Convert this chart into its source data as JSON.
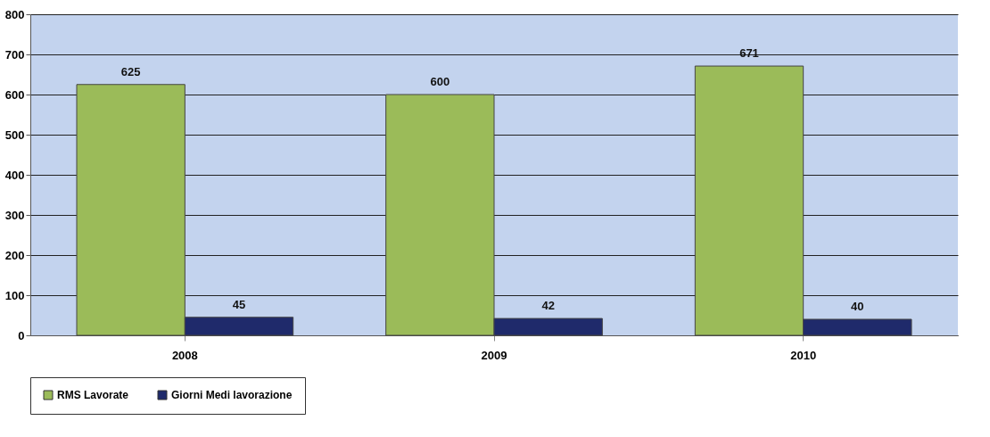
{
  "chart_data": {
    "type": "bar",
    "categories": [
      "2008",
      "2009",
      "2010"
    ],
    "series": [
      {
        "name": "RMS Lavorate",
        "color": "#9bbb59",
        "values": [
          625,
          600,
          671
        ]
      },
      {
        "name": "Giorni Medi lavorazione",
        "color": "#1f2a6b",
        "values": [
          45,
          42,
          40
        ]
      }
    ],
    "ylim": [
      0,
      800
    ],
    "yticks": [
      0,
      100,
      200,
      300,
      400,
      500,
      600,
      700,
      800
    ],
    "grid": "y",
    "legend": "bottom",
    "data_labels": true
  }
}
